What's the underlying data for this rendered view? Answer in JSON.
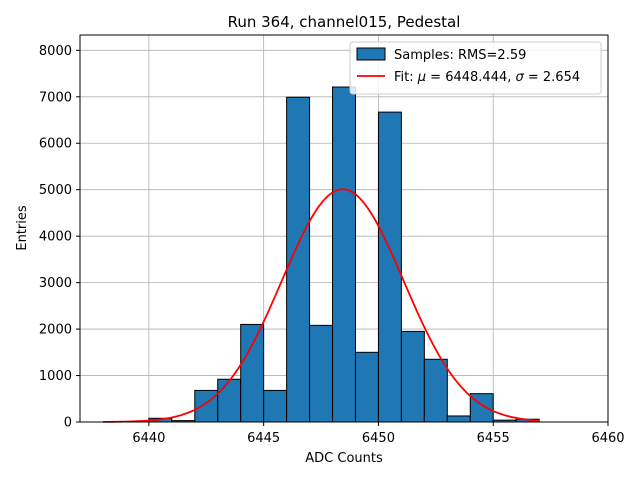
{
  "chart_data": {
    "type": "bar",
    "title": "Run 364, channel015, Pedestal",
    "xlabel": "ADC Counts",
    "ylabel": "Entries",
    "xlim": [
      6437,
      6460
    ],
    "ylim": [
      0,
      8330
    ],
    "xticks": [
      6440,
      6445,
      6450,
      6455,
      6460
    ],
    "yticks": [
      0,
      1000,
      2000,
      3000,
      4000,
      5000,
      6000,
      7000,
      8000
    ],
    "grid": true,
    "legend_placement": "upper-right",
    "histogram": {
      "name": "Samples: RMS=2.59",
      "color": "#1f77b4",
      "bin_edges": [
        6438,
        6439,
        6440,
        6441,
        6442,
        6443,
        6444,
        6445,
        6446,
        6447,
        6448,
        6449,
        6450,
        6451,
        6452,
        6453,
        6454,
        6455,
        6456,
        6457
      ],
      "counts": [
        0,
        10,
        80,
        30,
        680,
        920,
        2100,
        680,
        6990,
        2080,
        7210,
        1500,
        6670,
        1950,
        1350,
        130,
        610,
        40,
        60
      ]
    },
    "fit": {
      "name": "Fit: μ = 6448.444, σ = 2.654",
      "name_parts": [
        "Fit: ",
        "μ",
        " = 6448.444, ",
        "σ",
        " = 2.654"
      ],
      "color": "#ff0000",
      "mu": 6448.444,
      "sigma": 2.654,
      "amplitude": 5010,
      "x_range": [
        6438,
        6457
      ]
    }
  }
}
